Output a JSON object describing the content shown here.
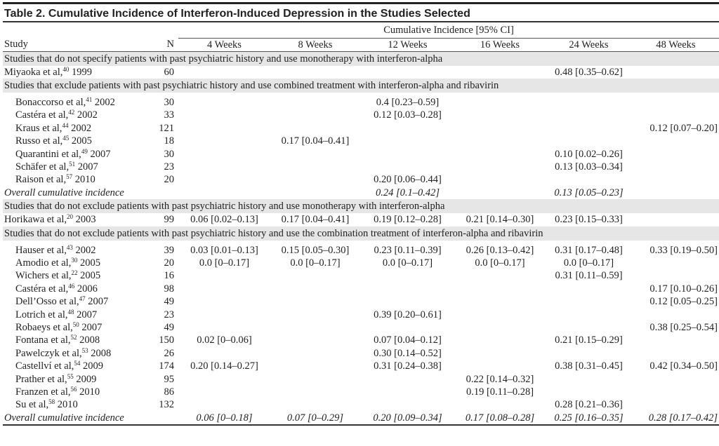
{
  "title": "Table 2. Cumulative Incidence of Interferon-Induced Depression in the Studies Selected",
  "header": {
    "span_label": "Cumulative Incidence [95% CI]",
    "study": "Study",
    "n": "N",
    "weeks": [
      "4 Weeks",
      "8 Weeks",
      "12 Weeks",
      "16 Weeks",
      "24 Weeks",
      "48 Weeks"
    ]
  },
  "sections": [
    {
      "label": "Studies that do not specify patients with past psychiatric history and use monotherapy with interferon-alpha",
      "indent": false,
      "rows": [
        {
          "author": "Miyaoka et al,",
          "ref": "40",
          "year": " 1999",
          "n": "60",
          "values": [
            "",
            "",
            "",
            "",
            "0.48 [0.35–0.62]",
            ""
          ]
        }
      ]
    },
    {
      "label": "Studies that exclude patients with past psychiatric history and use combined treatment with interferon-alpha and ribavirin",
      "indent": true,
      "rows": [
        {
          "author": "Bonaccorso et al,",
          "ref": "41",
          "year": " 2002",
          "n": "30",
          "values": [
            "",
            "",
            "0.4 [0.23–0.59]",
            "",
            "",
            ""
          ]
        },
        {
          "author": "Castéra et al,",
          "ref": "42",
          "year": " 2002",
          "n": "33",
          "values": [
            "",
            "",
            "0.12 [0.03–0.28]",
            "",
            "",
            ""
          ]
        },
        {
          "author": "Kraus et al,",
          "ref": "44",
          "year": " 2002",
          "n": "121",
          "values": [
            "",
            "",
            "",
            "",
            "",
            "0.12 [0.07–0.20]"
          ]
        },
        {
          "author": "Russo et al,",
          "ref": "45",
          "year": " 2005",
          "n": "18",
          "values": [
            "",
            "0.17 [0.04–0.41]",
            "",
            "",
            "",
            ""
          ]
        },
        {
          "author": "Quarantini et al,",
          "ref": "49",
          "year": " 2007",
          "n": "30",
          "values": [
            "",
            "",
            "",
            "",
            "0.10 [0.02–0.26]",
            ""
          ]
        },
        {
          "author": "Schäfer et al,",
          "ref": "51",
          "year": " 2007",
          "n": "23",
          "values": [
            "",
            "",
            "",
            "",
            "0.13 [0.03–0.34]",
            ""
          ]
        },
        {
          "author": "Raison et al,",
          "ref": "57",
          "year": " 2010",
          "n": "20",
          "values": [
            "",
            "",
            "0.20 [0.06–0.44]",
            "",
            "",
            ""
          ]
        }
      ],
      "overall": {
        "label": "Overall cumulative incidence",
        "values": [
          "",
          "",
          "0.24 [0.1–0.42]",
          "",
          "0.13 [0.05–0.23]",
          ""
        ]
      }
    },
    {
      "label": "Studies that do not exclude patients with past psychiatric history and use monotherapy with interferon-alpha",
      "indent": false,
      "rows": [
        {
          "author": "Horikawa et al,",
          "ref": "20",
          "year": " 2003",
          "n": "99",
          "values": [
            "0.06 [0.02–0.13]",
            "0.17 [0.04–0.41]",
            "0.19 [0.12–0.28]",
            "0.21 [0.14–0.30]",
            "0.23 [0.15–0.33]",
            ""
          ]
        }
      ]
    },
    {
      "label": "Studies that do not exclude patients with past psychiatric history and use the combination treatment of interferon-alpha and ribavirin",
      "indent": true,
      "rows": [
        {
          "author": "Hauser et al,",
          "ref": "43",
          "year": " 2002",
          "n": "39",
          "values": [
            "0.03 [0.01–0.13]",
            "0.15 [0.05–0.30]",
            "0.23 [0.11–0.39]",
            "0.26 [0.13–0.42]",
            "0.31 [0.17–0.48]",
            "0.33 [0.19–0.50]"
          ]
        },
        {
          "author": "Amodio et al,",
          "ref": "30",
          "year": " 2005",
          "n": "20",
          "values": [
            "0.0 [0–0.17]",
            "0.0 [0–0.17]",
            "0.0 [0–0.17]",
            "0.0 [0–0.17]",
            "0.0 [0–0.17]",
            ""
          ]
        },
        {
          "author": "Wichers et al,",
          "ref": "22",
          "year": " 2005",
          "n": "16",
          "values": [
            "",
            "",
            "",
            "",
            "0.31 [0.11–0.59]",
            ""
          ]
        },
        {
          "author": "Castéra et al,",
          "ref": "46",
          "year": " 2006",
          "n": "98",
          "values": [
            "",
            "",
            "",
            "",
            "",
            "0.17 [0.10–0.26]"
          ]
        },
        {
          "author": "Dell’Osso et al,",
          "ref": "47",
          "year": " 2007",
          "n": "49",
          "values": [
            "",
            "",
            "",
            "",
            "",
            "0.12 [0.05–0.25]"
          ]
        },
        {
          "author": "Lotrich et al,",
          "ref": "48",
          "year": " 2007",
          "n": "23",
          "values": [
            "",
            "",
            "0.39 [0.20–0.61]",
            "",
            "",
            ""
          ]
        },
        {
          "author": "Robaeys et al,",
          "ref": "50",
          "year": " 2007",
          "n": "49",
          "values": [
            "",
            "",
            "",
            "",
            "",
            "0.38 [0.25–0.54]"
          ]
        },
        {
          "author": "Fontana et al,",
          "ref": "52",
          "year": " 2008",
          "n": "150",
          "values": [
            "0.02 [0–0.06]",
            "",
            "0.07 [0.04–0.12]",
            "",
            "0.21 [0.15–0.29]",
            ""
          ]
        },
        {
          "author": "Pawelczyk et al,",
          "ref": "53",
          "year": " 2008",
          "n": "26",
          "values": [
            "",
            "",
            "0.30 [0.14–0.52]",
            "",
            "",
            ""
          ]
        },
        {
          "author": "Castellví et al,",
          "ref": "54",
          "year": " 2009",
          "n": "174",
          "values": [
            "0.20 [0.14–0.27]",
            "",
            "0.31 [0.24–0.38]",
            "",
            "0.38 [0.31–0.45]",
            "0.42 [0.34–0.50]"
          ]
        },
        {
          "author": "Prather et al,",
          "ref": "55",
          "year": " 2009",
          "n": "95",
          "values": [
            "",
            "",
            "",
            "0.22 [0.14–0.32]",
            "",
            ""
          ]
        },
        {
          "author": "Franzen et al,",
          "ref": "56",
          "year": " 2010",
          "n": "86",
          "values": [
            "",
            "",
            "",
            "0.19 [0.11–0.28]",
            "",
            ""
          ]
        },
        {
          "author": "Su et al,",
          "ref": "58",
          "year": " 2010",
          "n": "132",
          "values": [
            "",
            "",
            "",
            "",
            "0.28 [0.21–0.36]",
            ""
          ]
        }
      ],
      "overall": {
        "label": "Overall cumulative incidence",
        "values": [
          "0.06 [0–0.18]",
          "0.07 [0–0.29]",
          "0.20 [0.09–0.34]",
          "0.17 [0.08–0.28]",
          "0.25 [0.16–0.35]",
          "0.28 [0.17–0.42]"
        ]
      }
    }
  ]
}
